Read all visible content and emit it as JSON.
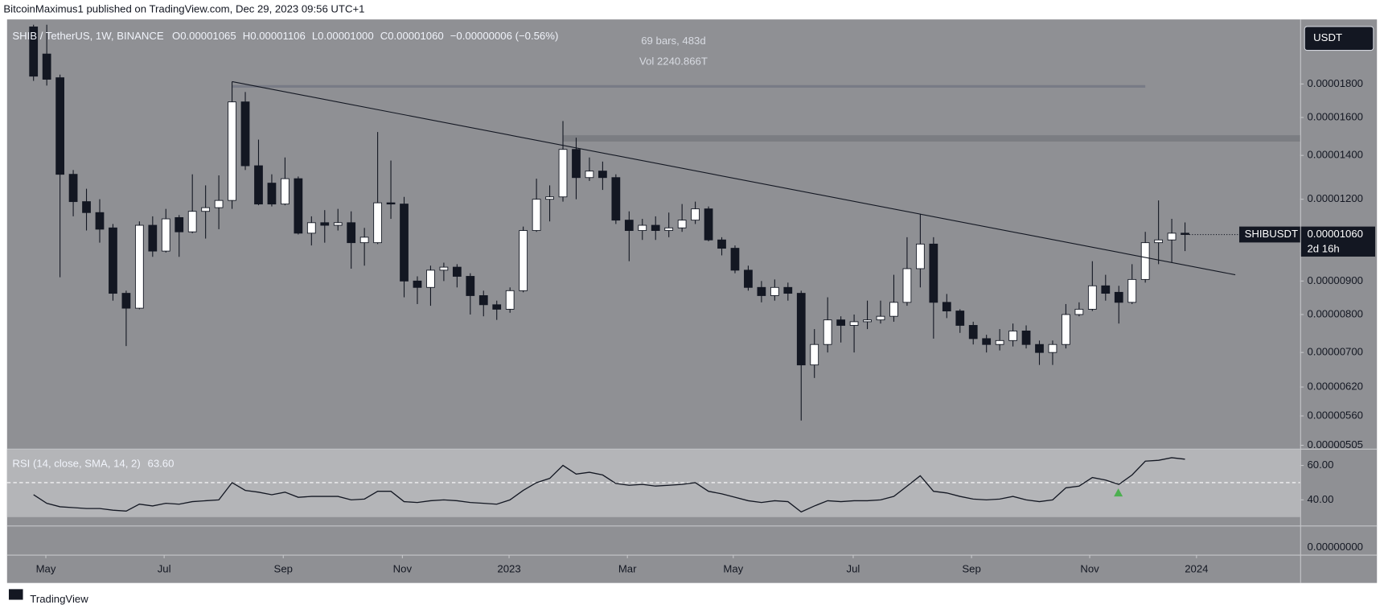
{
  "header": {
    "published": "BitcoinMaximus1 published on TradingView.com, Dec 29, 2023 09:56 UTC+1",
    "currency": "USDT",
    "footer": "TradingView"
  },
  "legend": {
    "symbol": "SHIB / TetherUS, 1W, BINANCE",
    "items": [
      {
        "key": "O",
        "value": "0.00001065"
      },
      {
        "key": "H",
        "value": "0.00001106"
      },
      {
        "key": "L",
        "value": "0.00001000"
      },
      {
        "key": "C",
        "value": "0.00001060"
      }
    ],
    "change": "−0.00000006 (−0.56%)",
    "measure": "69 bars, 483d",
    "volume": "Vol 2240.866T"
  },
  "chart_data": [
    {
      "type": "candlestick",
      "log_scale": true,
      "up_color": "#ffffff",
      "down_color": "#131722",
      "wick_color": "#131722",
      "xlim": [
        -2,
        95.7
      ],
      "xticks": [
        {
          "value": 0.93,
          "label": "May"
        },
        {
          "value": 9.87,
          "label": "Jul"
        },
        {
          "value": 18.87,
          "label": "Sep"
        },
        {
          "value": 27.87,
          "label": "Nov"
        },
        {
          "value": 35.93,
          "label": "2023"
        },
        {
          "value": 44.87,
          "label": "Mar"
        },
        {
          "value": 52.87,
          "label": "May"
        },
        {
          "value": 61.93,
          "label": "Jul"
        },
        {
          "value": 70.87,
          "label": "Sep"
        },
        {
          "value": 79.8,
          "label": "Nov"
        },
        {
          "value": 87.87,
          "label": "2024"
        }
      ],
      "ylim": [
        4.99e-06,
        2.217e-05
      ],
      "yticks": [
        {
          "value": 1.8e-05,
          "label": "0.00001800"
        },
        {
          "value": 1.6e-05,
          "label": "0.00001600"
        },
        {
          "value": 1.4e-05,
          "label": "0.00001400"
        },
        {
          "value": 1.2e-05,
          "label": "0.00001200"
        },
        {
          "value": 1e-05,
          "label": "0.00001000"
        },
        {
          "value": 9e-06,
          "label": "0.00000900"
        },
        {
          "value": 8e-06,
          "label": "0.00000800"
        },
        {
          "value": 7e-06,
          "label": "0.00000700"
        },
        {
          "value": 6.2e-06,
          "label": "0.00000620"
        },
        {
          "value": 5.6e-06,
          "label": "0.00000560"
        },
        {
          "value": 5.05e-06,
          "label": "0.00000505"
        }
      ],
      "open": [
        2.2e-05,
        2e-05,
        1.84e-05,
        1.31e-05,
        1.19e-05,
        1.145e-05,
        1.085e-05,
        8.62e-06,
        8.18e-06,
        1.095e-05,
        1e-05,
        1.125e-05,
        1.07e-05,
        1.15e-05,
        1.165e-05,
        1.195e-05,
        1.69e-05,
        1.35e-05,
        1.27e-05,
        1.18e-05,
        1.29e-05,
        1.065e-05,
        1.105e-05,
        1.095e-05,
        1.105e-05,
        1.03e-05,
        1.03e-05,
        1.185e-05,
        1.18e-05,
        9e-06,
        8.8e-06,
        9.35e-06,
        9.45e-06,
        9.15e-06,
        8.55e-06,
        8.28e-06,
        8.15e-06,
        8.7e-06,
        1.075e-05,
        1.2e-05,
        1.21e-05,
        1.43e-05,
        1.295e-05,
        1.325e-05,
        1.295e-05,
        1.115e-05,
        1.075e-05,
        1.095e-05,
        1.075e-05,
        1.085e-05,
        1.115e-05,
        1.16e-05,
        1.04e-05,
        1.01e-05,
        9.35e-06,
        8.8e-06,
        8.55e-06,
        8.8e-06,
        8.62e-06,
        6.7e-06,
        7.2e-06,
        7.85e-06,
        7.7e-06,
        7.8e-06,
        7.85e-06,
        7.95e-06,
        8.35e-06,
        9.4e-06,
        1.025e-05,
        8.35e-06,
        8.1e-06,
        7.7e-06,
        7.35e-06,
        7.2e-06,
        7.3e-06,
        7.55e-06,
        7.2e-06,
        7e-06,
        7.2e-06,
        8e-06,
        8.15e-06,
        8.85e-06,
        8.65e-06,
        8.35e-06,
        9.05e-06,
        1.03e-05,
        1.04e-05,
        1.065e-05
      ],
      "high": [
        2.3e-05,
        2.25e-05,
        1.86e-05,
        1.33e-05,
        1.245e-05,
        1.2e-05,
        1.1e-05,
        8.7e-06,
        1.11e-05,
        1.13e-05,
        1.16e-05,
        1.135e-05,
        1.31e-05,
        1.26e-05,
        1.305e-05,
        1.815e-05,
        1.75e-05,
        1.48e-05,
        1.31e-05,
        1.39e-05,
        1.3e-05,
        1.13e-05,
        1.155e-05,
        1.16e-05,
        1.15e-05,
        1.085e-05,
        1.52e-05,
        1.375e-05,
        1.21e-05,
        9.15e-06,
        9.5e-06,
        9.6e-06,
        9.55e-06,
        9.25e-06,
        8.7e-06,
        8.4e-06,
        8.8e-06,
        1.09e-05,
        1.29e-05,
        1.26e-05,
        1.58e-05,
        1.49e-05,
        1.39e-05,
        1.37e-05,
        1.31e-05,
        1.15e-05,
        1.12e-05,
        1.13e-05,
        1.145e-05,
        1.18e-05,
        1.19e-05,
        1.17e-05,
        1.05e-05,
        1.02e-05,
        9.5e-06,
        9e-06,
        9.05e-06,
        8.95e-06,
        8.7e-06,
        7.6e-06,
        8.5e-06,
        7.95e-06,
        8e-06,
        8.4e-06,
        8.4e-06,
        9.2e-06,
        1.05e-05,
        1.14e-05,
        1.05e-05,
        8.6e-06,
        8.15e-06,
        7.8e-06,
        7.45e-06,
        7.6e-06,
        7.75e-06,
        7.7e-06,
        7.3e-06,
        7.3e-06,
        8.3e-06,
        8.35e-06,
        9.65e-06,
        9.2e-06,
        8.85e-06,
        9.55e-06,
        1.07e-05,
        1.195e-05,
        1.12e-05,
        1.106e-05
      ],
      "low": [
        1.82e-05,
        1.79e-05,
        9.12e-06,
        1.13e-05,
        1.075e-05,
        1.03e-05,
        8.4e-06,
        7.16e-06,
        8.15e-06,
        9.8e-06,
        9.95e-06,
        9.8e-06,
        1.065e-05,
        1.045e-05,
        1.08e-05,
        1.16e-05,
        1.33e-05,
        1.175e-05,
        1.17e-05,
        1.175e-05,
        1.06e-05,
        1.02e-05,
        1.03e-05,
        1.075e-05,
        9.4e-06,
        9.5e-06,
        1.025e-05,
        1.12e-05,
        8.5e-06,
        8.3e-06,
        8.25e-06,
        9e-06,
        8.8e-06,
        8e-06,
        7.95e-06,
        7.85e-06,
        8.05e-06,
        8.65e-06,
        1.07e-05,
        1.11e-05,
        1.19e-05,
        1.2e-05,
        1.28e-05,
        1.24e-05,
        1.1e-05,
        9.65e-06,
        1.04e-05,
        1.04e-05,
        1.05e-05,
        1.07e-05,
        1.1e-05,
        1.035e-05,
        9.85e-06,
        9.25e-06,
        8.7e-06,
        8.35e-06,
        8.4e-06,
        8.4e-06,
        5.51e-06,
        6.4e-06,
        7e-06,
        7.25e-06,
        7e-06,
        7.6e-06,
        7.75e-06,
        7.8e-06,
        8.25e-06,
        8.8e-06,
        7.35e-06,
        7.9e-06,
        7.5e-06,
        7.2e-06,
        7e-06,
        7.05e-06,
        7.15e-06,
        7.1e-06,
        6.7e-06,
        6.7e-06,
        7.1e-06,
        7.95e-06,
        8.1e-06,
        8.4e-06,
        7.75e-06,
        8.3e-06,
        8.95e-06,
        9.55e-06,
        9.6e-06,
        1e-05
      ],
      "close": [
        1.85e-05,
        1.83e-05,
        1.31e-05,
        1.19e-05,
        1.145e-05,
        1.08e-05,
        8.62e-06,
        8.18e-06,
        1.095e-05,
        1e-05,
        1.12e-05,
        1.07e-05,
        1.15e-05,
        1.165e-05,
        1.195e-05,
        1.69e-05,
        1.35e-05,
        1.18e-05,
        1.18e-05,
        1.29e-05,
        1.065e-05,
        1.105e-05,
        1.095e-05,
        1.105e-05,
        1.03e-05,
        1.05e-05,
        1.185e-05,
        1.18e-05,
        9e-06,
        8.8e-06,
        9.35e-06,
        9.45e-06,
        9.15e-06,
        8.55e-06,
        8.28e-06,
        8.15e-06,
        8.7e-06,
        1.075e-05,
        1.2e-05,
        1.21e-05,
        1.43e-05,
        1.295e-05,
        1.325e-05,
        1.295e-05,
        1.115e-05,
        1.075e-05,
        1.095e-05,
        1.075e-05,
        1.085e-05,
        1.115e-05,
        1.16e-05,
        1.04e-05,
        1.01e-05,
        9.35e-06,
        8.8e-06,
        8.55e-06,
        8.8e-06,
        8.62e-06,
        6.7e-06,
        7.2e-06,
        7.85e-06,
        7.7e-06,
        7.8e-06,
        7.85e-06,
        7.95e-06,
        8.35e-06,
        9.4e-06,
        1.025e-05,
        8.35e-06,
        8.1e-06,
        7.7e-06,
        7.35e-06,
        7.2e-06,
        7.3e-06,
        7.55e-06,
        7.2e-06,
        7e-06,
        7.2e-06,
        8e-06,
        8.15e-06,
        8.85e-06,
        8.62e-06,
        8.35e-06,
        9.05e-06,
        1.03e-05,
        1.04e-05,
        1.065e-05,
        1.06e-05
      ],
      "symbol_label": "SHIBUSDT",
      "last_label": "0.00001060",
      "countdown": "2d 16h",
      "trendline": {
        "x": [
          15,
          90.8
        ],
        "y": [
          1.815e-05,
          9.2e-06
        ]
      },
      "resistance": {
        "x": [
          15,
          84
        ],
        "y": 1.785e-05
      },
      "zone": {
        "x": 40,
        "y": [
          1.503e-05,
          1.47e-05
        ]
      }
    },
    {
      "type": "line",
      "title": "RSI (14, close, SMA, 14, 2)",
      "last": {
        "value": 63.6,
        "label": "63.60"
      },
      "color": "#131722",
      "ylim": [
        25.6,
        69.2
      ],
      "band": [
        30,
        70
      ],
      "midline": 50,
      "yticks": [
        {
          "value": 60,
          "label": "60.00"
        },
        {
          "value": 40,
          "label": "40.00"
        }
      ],
      "values": [
        43,
        38,
        36,
        35.5,
        35,
        35,
        34,
        33.5,
        37.5,
        36.5,
        38,
        37.5,
        39,
        39.5,
        40,
        50,
        45.5,
        44.5,
        43,
        44.5,
        41.5,
        42,
        42,
        42,
        40,
        40.5,
        45,
        45,
        39,
        38.5,
        39.5,
        40,
        39.5,
        38.5,
        38,
        37.5,
        40,
        45.5,
        50,
        52.5,
        60,
        55,
        56,
        54.5,
        49.5,
        48.5,
        49,
        48,
        48.5,
        49,
        50,
        45,
        43.5,
        41.5,
        39.5,
        38.5,
        39.5,
        39,
        33,
        36.5,
        39.5,
        39,
        39.5,
        39.5,
        40,
        42,
        48,
        54,
        45,
        44,
        42,
        40.5,
        40,
        40.5,
        42,
        40,
        39,
        40,
        47,
        48,
        53,
        51.5,
        49,
        54.5,
        62.5,
        63,
        64.5,
        63.6
      ]
    },
    {
      "type": "empty",
      "yticks": [
        {
          "value": 0,
          "label": "0.00000000"
        }
      ]
    }
  ]
}
